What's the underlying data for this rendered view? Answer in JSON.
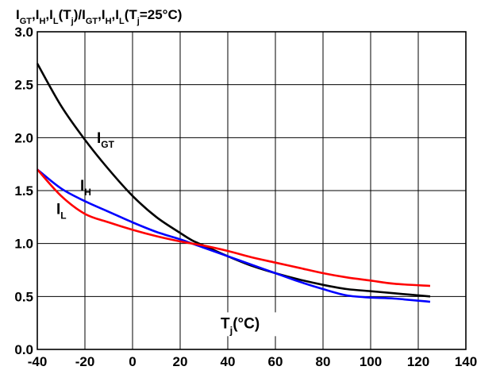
{
  "chart_data": {
    "type": "line",
    "title": "",
    "ylabel": {
      "parts": [
        {
          "t": "I"
        },
        {
          "t": "GT",
          "sub": true
        },
        {
          "t": ",I"
        },
        {
          "t": "H",
          "sub": true
        },
        {
          "t": ",I"
        },
        {
          "t": "L",
          "sub": true
        },
        {
          "t": "(T"
        },
        {
          "t": "j",
          "sub": true
        },
        {
          "t": ")/I"
        },
        {
          "t": "GT",
          "sub": true
        },
        {
          "t": ",I"
        },
        {
          "t": "H",
          "sub": true
        },
        {
          "t": ",I"
        },
        {
          "t": "L",
          "sub": true
        },
        {
          "t": "(T"
        },
        {
          "t": "j",
          "sub": true
        },
        {
          "t": "=25°C)"
        }
      ]
    },
    "xlabel": {
      "parts": [
        {
          "t": "T"
        },
        {
          "t": "j",
          "sub": true
        },
        {
          "t": "(°C)"
        }
      ]
    },
    "xlim": [
      -40,
      140
    ],
    "ylim": [
      0.0,
      3.0
    ],
    "xticks": [
      -40,
      -20,
      0,
      20,
      40,
      60,
      80,
      100,
      120,
      140
    ],
    "yticks": [
      0.0,
      0.5,
      1.0,
      1.5,
      2.0,
      2.5,
      3.0
    ],
    "xtick_labels": [
      "-40",
      "-20",
      "0",
      "20",
      "40",
      "60",
      "80",
      "100",
      "120",
      "140"
    ],
    "ytick_labels": [
      "0.0",
      "0.5",
      "1.0",
      "1.5",
      "2.0",
      "2.5",
      "3.0"
    ],
    "grid": true,
    "series": [
      {
        "name": "IGT",
        "label_main": "I",
        "label_sub": "GT",
        "label_at": [
          -15,
          1.95
        ],
        "color": "#000000",
        "x": [
          -40,
          -30,
          -20,
          -10,
          0,
          10,
          20,
          25,
          30,
          40,
          50,
          60,
          70,
          80,
          90,
          100,
          110,
          125
        ],
        "y": [
          2.7,
          2.3,
          1.98,
          1.7,
          1.45,
          1.25,
          1.1,
          1.03,
          0.98,
          0.88,
          0.79,
          0.72,
          0.66,
          0.61,
          0.57,
          0.55,
          0.53,
          0.5
        ]
      },
      {
        "name": "IH",
        "label_main": "I",
        "label_sub": "H",
        "label_at": [
          -22,
          1.5
        ],
        "color": "#0000ff",
        "x": [
          -40,
          -30,
          -20,
          -10,
          0,
          10,
          20,
          25,
          30,
          40,
          50,
          60,
          70,
          80,
          90,
          100,
          110,
          125
        ],
        "y": [
          1.7,
          1.52,
          1.4,
          1.3,
          1.2,
          1.11,
          1.04,
          1.0,
          0.96,
          0.88,
          0.8,
          0.72,
          0.64,
          0.57,
          0.51,
          0.49,
          0.48,
          0.45
        ]
      },
      {
        "name": "IL",
        "label_main": "I",
        "label_sub": "L",
        "label_at": [
          -32,
          1.28
        ],
        "color": "#ff0000",
        "x": [
          -40,
          -30,
          -20,
          -10,
          0,
          10,
          20,
          25,
          30,
          40,
          50,
          60,
          70,
          80,
          90,
          100,
          110,
          125
        ],
        "y": [
          1.7,
          1.45,
          1.28,
          1.2,
          1.13,
          1.07,
          1.02,
          1.0,
          0.98,
          0.93,
          0.87,
          0.82,
          0.77,
          0.72,
          0.68,
          0.65,
          0.62,
          0.6
        ]
      }
    ]
  }
}
